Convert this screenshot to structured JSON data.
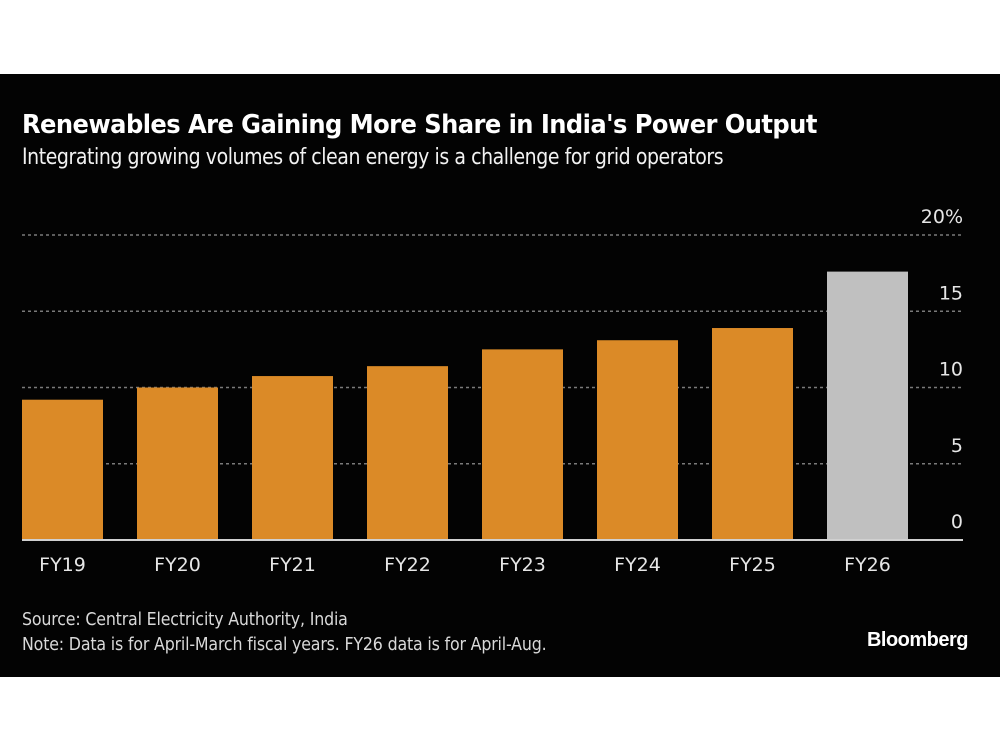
{
  "chart_data": {
    "type": "bar",
    "title": "Renewables Are Gaining More Share in India's Power Output",
    "subtitle": "Integrating growing volumes of clean energy is a challenge for grid operators",
    "xlabel": "",
    "ylabel": "",
    "categories": [
      "FY19",
      "FY20",
      "FY21",
      "FY22",
      "FY23",
      "FY24",
      "FY25",
      "FY26"
    ],
    "values": [
      9.2,
      10.0,
      10.75,
      11.4,
      12.5,
      13.1,
      13.9,
      17.6
    ],
    "value_unit": "%",
    "bar_colors": [
      "#db8a27",
      "#db8a27",
      "#db8a27",
      "#db8a27",
      "#db8a27",
      "#db8a27",
      "#db8a27",
      "#c0c0c0"
    ],
    "ylim": [
      0,
      20
    ],
    "yticks": [
      0,
      5,
      10,
      15,
      20
    ],
    "ytick_labels": [
      "0",
      "5",
      "10",
      "15",
      "20%"
    ],
    "y_axis_side": "right",
    "grid": true,
    "grid_style": "dotted",
    "legend": "none"
  },
  "footer": {
    "source": "Source: Central Electricity Authority, India",
    "note": "Note: Data is for April-March fiscal years. FY26 data is for April-Aug.",
    "brand": "Bloomberg"
  },
  "colors": {
    "background": "#030303",
    "bar_primary": "#db8a27",
    "bar_highlight": "#c0c0c0",
    "gridline": "#7a7a7a",
    "baseline": "#d0d0d0",
    "text": "#e6e6e6"
  }
}
